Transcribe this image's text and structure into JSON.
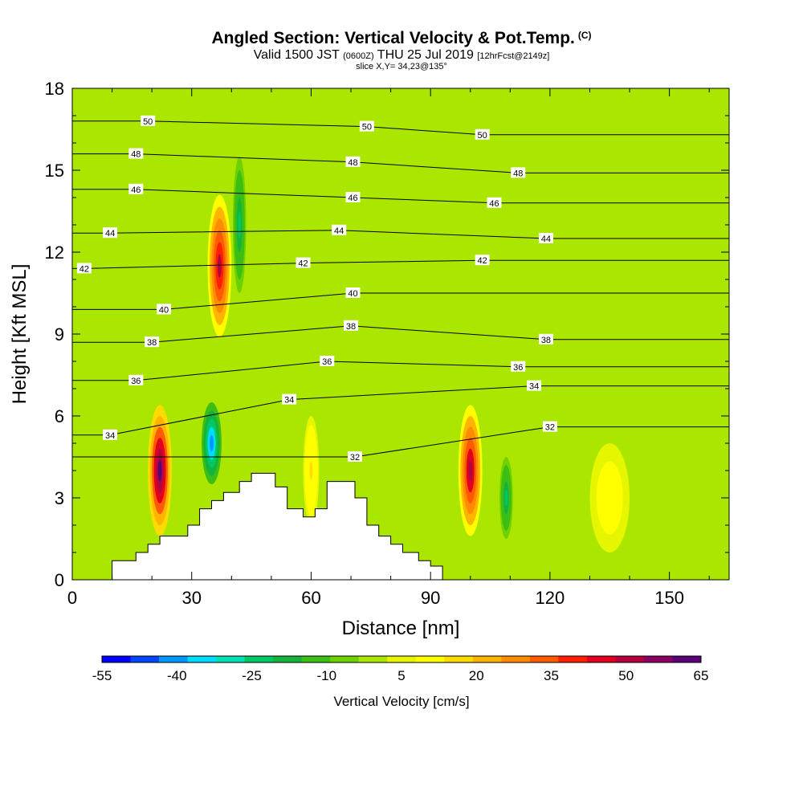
{
  "header": {
    "title": "Angled Section: Vertical Velocity & Pot.Temp.",
    "title_tag": "(C)",
    "valid_main": "Valid 1500 JST",
    "valid_z": "(0600Z)",
    "valid_date": "THU 25 Jul 2019",
    "fcst": "[12hrFcst@2149z]",
    "slice": "slice X,Y= 34,23@135°"
  },
  "chart_data": {
    "type": "heatmap",
    "title": "Angled Section: Vertical Velocity & Pot.Temp.",
    "xlabel": "Distance [nm]",
    "ylabel": "Height [Kft MSL]",
    "xlim": [
      0,
      165
    ],
    "ylim": [
      0,
      18
    ],
    "xticks": [
      0,
      30,
      60,
      90,
      120,
      150
    ],
    "yticks": [
      0,
      3,
      6,
      9,
      12,
      15,
      18
    ],
    "colorbar": {
      "label": "Vertical Velocity [cm/s]",
      "ticks": [
        -55,
        -40,
        -25,
        -10,
        5,
        20,
        35,
        50,
        65
      ],
      "colors": [
        "#0000ff",
        "#0046ff",
        "#0096ff",
        "#00dcff",
        "#00e0b4",
        "#00c864",
        "#14b43c",
        "#3cbe14",
        "#6ed200",
        "#aae600",
        "#e6f500",
        "#ffff00",
        "#ffdc00",
        "#ffb400",
        "#ff8c00",
        "#ff5a00",
        "#ff1e00",
        "#e1001e",
        "#b4003c",
        "#8c0064",
        "#5a0078"
      ]
    },
    "vertical_velocity_cells": [
      {
        "x": 22,
        "y": 4.0,
        "dx": 3,
        "dy": 2.4,
        "value": 62
      },
      {
        "x": 37,
        "y": 11.5,
        "dx": 3,
        "dy": 2.6,
        "value": 48
      },
      {
        "x": 35,
        "y": 5.0,
        "dx": 3,
        "dy": 1.8,
        "value": -40
      },
      {
        "x": 42,
        "y": 13.0,
        "dx": 2,
        "dy": 3.0,
        "value": -25
      },
      {
        "x": 100,
        "y": 4.0,
        "dx": 3,
        "dy": 2.4,
        "value": 52
      },
      {
        "x": 109,
        "y": 3.0,
        "dx": 2,
        "dy": 1.8,
        "value": -25
      },
      {
        "x": 60,
        "y": 4.0,
        "dx": 2,
        "dy": 2.0,
        "value": 15
      },
      {
        "x": 135,
        "y": 3.0,
        "dx": 5,
        "dy": 2.0,
        "value": 12
      }
    ],
    "theta_contours": [
      {
        "value": 32,
        "label_x": 71,
        "label_y": 4.5
      },
      {
        "value": 34,
        "label_x": 9.5,
        "label_y": 5.3
      },
      {
        "value": 34,
        "label_x": 54.5,
        "label_y": 6.6
      },
      {
        "value": 36,
        "label_x": 16,
        "label_y": 7.3
      },
      {
        "value": 36,
        "label_x": 64,
        "label_y": 8.0
      },
      {
        "value": 38,
        "label_x": 20,
        "label_y": 8.7
      },
      {
        "value": 38,
        "label_x": 70,
        "label_y": 9.3
      },
      {
        "value": 40,
        "label_x": 23,
        "label_y": 9.9
      },
      {
        "value": 40,
        "label_x": 70.5,
        "label_y": 10.5
      },
      {
        "value": 42,
        "label_x": 3,
        "label_y": 11.4
      },
      {
        "value": 42,
        "label_x": 58,
        "label_y": 11.6
      },
      {
        "value": 42,
        "label_x": 103,
        "label_y": 11.7
      },
      {
        "value": 44,
        "label_x": 9.5,
        "label_y": 12.7
      },
      {
        "value": 44,
        "label_x": 67,
        "label_y": 12.8
      },
      {
        "value": 44,
        "label_x": 119,
        "label_y": 12.5
      },
      {
        "value": 46,
        "label_x": 16,
        "label_y": 14.3
      },
      {
        "value": 46,
        "label_x": 70.5,
        "label_y": 14.0
      },
      {
        "value": 46,
        "label_x": 106,
        "label_y": 13.8
      },
      {
        "value": 48,
        "label_x": 16,
        "label_y": 15.6
      },
      {
        "value": 48,
        "label_x": 70.5,
        "label_y": 15.3
      },
      {
        "value": 48,
        "label_x": 112,
        "label_y": 14.9
      },
      {
        "value": 50,
        "label_x": 19,
        "label_y": 16.8
      },
      {
        "value": 50,
        "label_x": 74,
        "label_y": 16.6
      },
      {
        "value": 50,
        "label_x": 103,
        "label_y": 16.3
      },
      {
        "value": 38,
        "label_x": 119,
        "label_y": 8.8
      },
      {
        "value": 36,
        "label_x": 112,
        "label_y": 7.8
      },
      {
        "value": 34,
        "label_x": 116,
        "label_y": 7.1
      },
      {
        "value": 32,
        "label_x": 120,
        "label_y": 5.6
      }
    ],
    "terrain": [
      [
        0,
        0
      ],
      [
        10,
        0
      ],
      [
        10,
        0.7
      ],
      [
        16,
        0.7
      ],
      [
        16,
        1.0
      ],
      [
        19,
        1.0
      ],
      [
        19,
        1.3
      ],
      [
        22,
        1.3
      ],
      [
        22,
        1.6
      ],
      [
        29,
        1.6
      ],
      [
        29,
        2.0
      ],
      [
        32,
        2.0
      ],
      [
        32,
        2.6
      ],
      [
        35,
        2.6
      ],
      [
        35,
        2.9
      ],
      [
        38,
        2.9
      ],
      [
        38,
        3.2
      ],
      [
        42,
        3.2
      ],
      [
        42,
        3.6
      ],
      [
        45,
        3.6
      ],
      [
        45,
        3.9
      ],
      [
        51,
        3.9
      ],
      [
        51,
        3.4
      ],
      [
        54,
        3.4
      ],
      [
        54,
        2.6
      ],
      [
        58,
        2.6
      ],
      [
        58,
        2.3
      ],
      [
        61,
        2.3
      ],
      [
        61,
        2.6
      ],
      [
        64,
        2.6
      ],
      [
        64,
        3.6
      ],
      [
        71,
        3.6
      ],
      [
        71,
        3.0
      ],
      [
        74,
        3.0
      ],
      [
        74,
        2.0
      ],
      [
        77,
        2.0
      ],
      [
        77,
        1.6
      ],
      [
        80,
        1.6
      ],
      [
        80,
        1.3
      ],
      [
        83,
        1.3
      ],
      [
        83,
        1.0
      ],
      [
        87,
        1.0
      ],
      [
        87,
        0.7
      ],
      [
        90,
        0.7
      ],
      [
        90,
        0.5
      ],
      [
        93,
        0.5
      ],
      [
        93,
        0
      ],
      [
        165,
        0
      ]
    ]
  }
}
